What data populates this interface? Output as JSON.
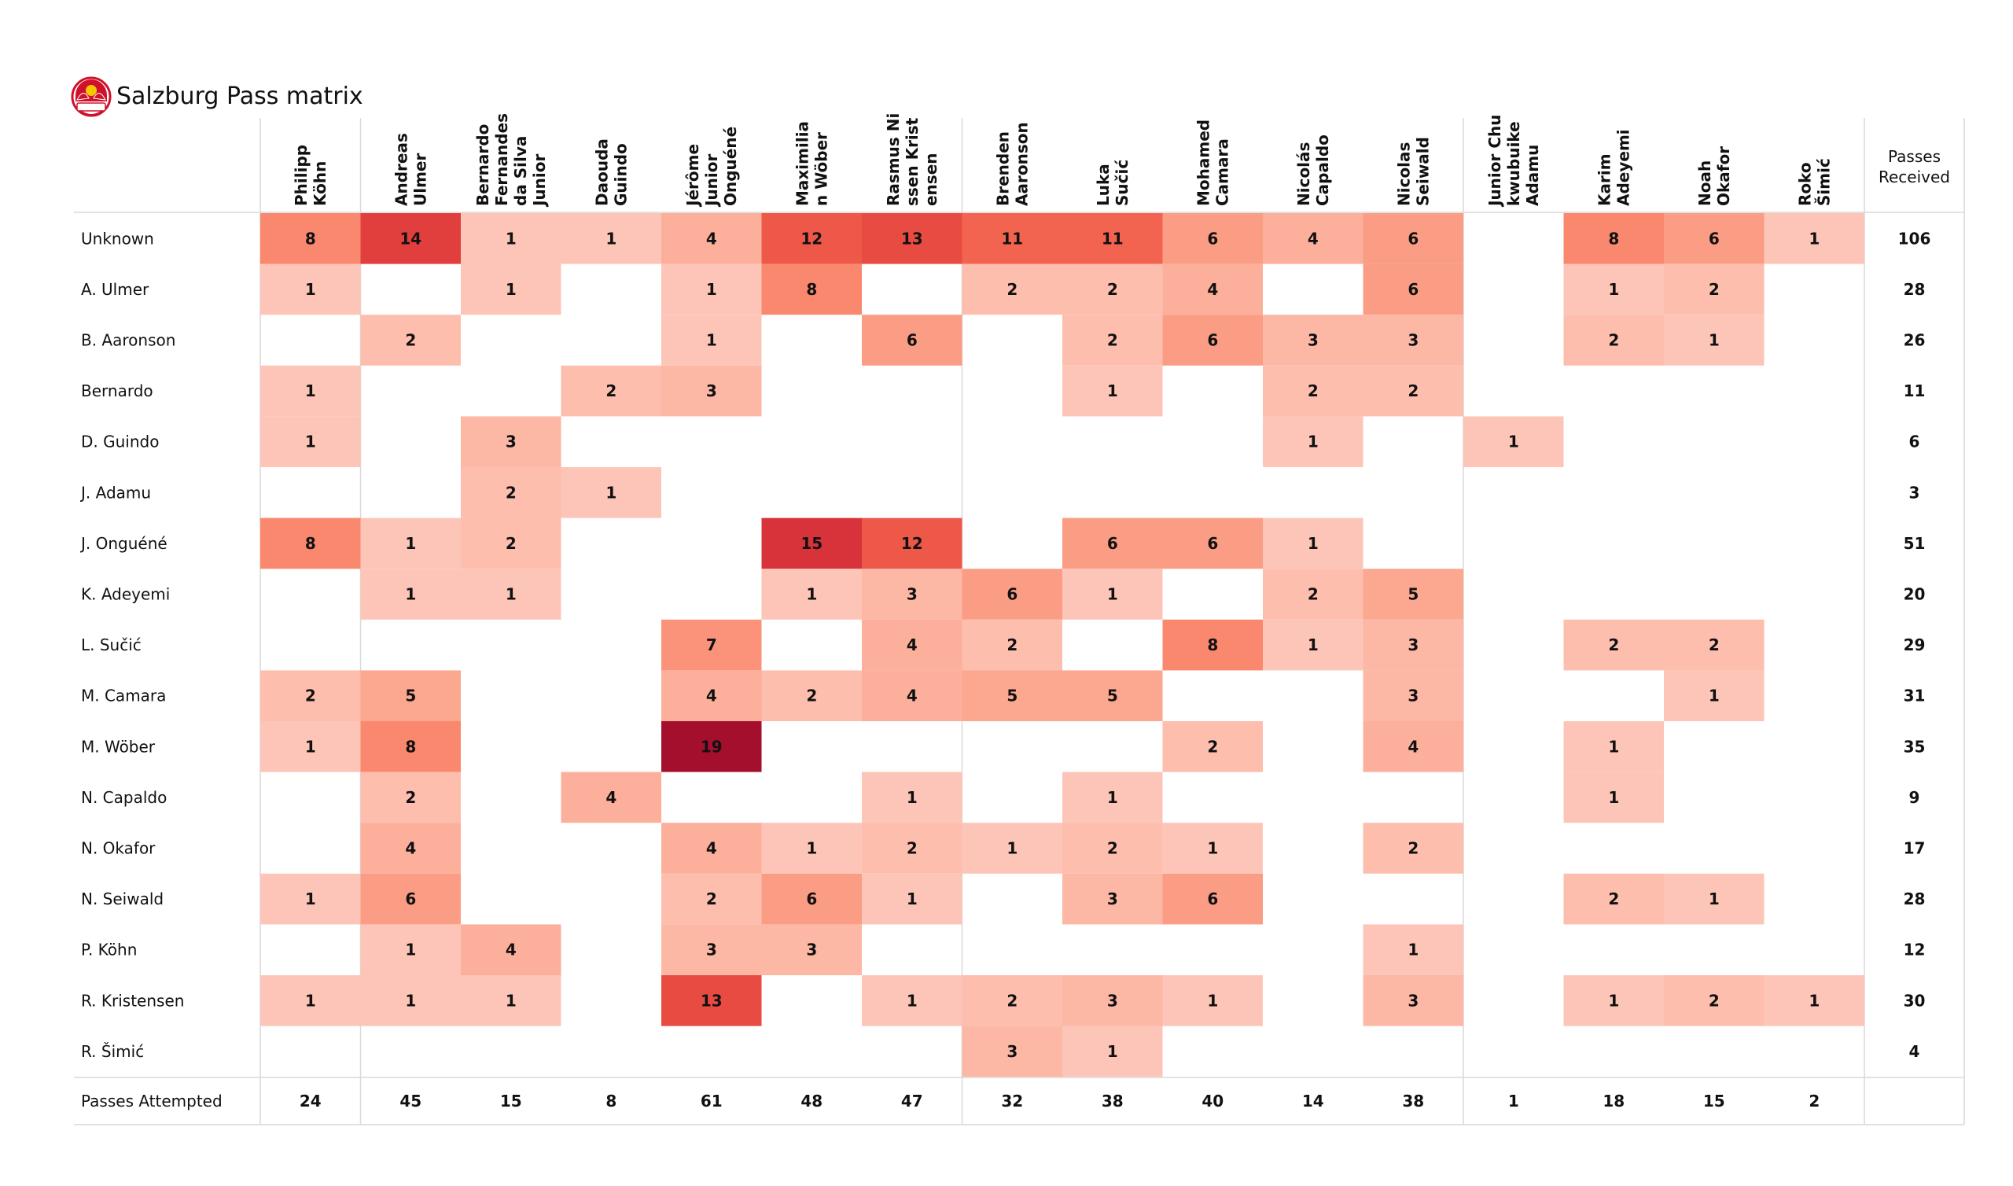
{
  "title": "Salzburg Pass matrix",
  "logo": {
    "name": "red-bull-salzburg-crest",
    "colors": {
      "red": "#d0112b",
      "yellow": "#f7c600",
      "white": "#ffffff",
      "navy": "#1c2a5a"
    }
  },
  "colors": {
    "low": "#fdc0b2",
    "high": "#a50f2e",
    "grid": "#d9d9d9",
    "text": "#111111"
  },
  "chart_data": {
    "type": "heatmap",
    "title": "Salzburg Pass matrix",
    "columns": [
      [
        "Philipp",
        "Köhn"
      ],
      [
        "Andreas",
        "Ulmer"
      ],
      [
        "Bernardo",
        "Fernandes",
        "da Silva",
        "Junior"
      ],
      [
        "Daouda",
        "Guindo"
      ],
      [
        "Jérôme",
        "Junior",
        "Onguéné"
      ],
      [
        "Maximilia",
        "n Wöber"
      ],
      [
        "Rasmus Ni",
        "ssen Krist",
        "ensen"
      ],
      [
        "Brenden",
        "Aaronson"
      ],
      [
        "Luka",
        "Sučić"
      ],
      [
        "Mohamed",
        "Camara"
      ],
      [
        "Nicolás",
        "Capaldo"
      ],
      [
        "Nicolas",
        "Seiwald"
      ],
      [
        "Junior Chu",
        "kwubuike",
        "Adamu"
      ],
      [
        "Karim",
        "Adeyemi"
      ],
      [
        "Noah",
        "Okafor"
      ],
      [
        "Roko",
        "Šimić"
      ]
    ],
    "rows": [
      "Unknown",
      "A. Ulmer",
      "B. Aaronson",
      "Bernardo",
      "D. Guindo",
      "J. Adamu",
      "J. Onguéné",
      "K. Adeyemi",
      "L. Sučić",
      "M. Camara",
      "M. Wöber",
      "N. Capaldo",
      "N. Okafor",
      "N. Seiwald",
      "P. Köhn",
      "R. Kristensen",
      "R. Šimić"
    ],
    "values": [
      [
        8,
        14,
        1,
        1,
        4,
        12,
        13,
        11,
        11,
        6,
        4,
        6,
        null,
        8,
        6,
        1
      ],
      [
        1,
        null,
        1,
        null,
        1,
        8,
        null,
        2,
        2,
        4,
        null,
        6,
        null,
        1,
        2,
        null
      ],
      [
        null,
        2,
        null,
        null,
        1,
        null,
        6,
        null,
        2,
        6,
        3,
        3,
        null,
        2,
        1,
        null
      ],
      [
        1,
        null,
        null,
        2,
        3,
        null,
        null,
        null,
        1,
        null,
        2,
        2,
        null,
        null,
        null,
        null
      ],
      [
        1,
        null,
        3,
        null,
        null,
        null,
        null,
        null,
        null,
        null,
        1,
        null,
        1,
        null,
        null,
        null
      ],
      [
        null,
        null,
        2,
        1,
        null,
        null,
        null,
        null,
        null,
        null,
        null,
        null,
        null,
        null,
        null,
        null
      ],
      [
        8,
        1,
        2,
        null,
        null,
        15,
        12,
        null,
        6,
        6,
        1,
        null,
        null,
        null,
        null,
        null
      ],
      [
        null,
        1,
        1,
        null,
        null,
        1,
        3,
        6,
        1,
        null,
        2,
        5,
        null,
        null,
        null,
        null
      ],
      [
        null,
        null,
        null,
        null,
        7,
        null,
        4,
        2,
        null,
        8,
        1,
        3,
        null,
        2,
        2,
        null
      ],
      [
        2,
        5,
        null,
        null,
        4,
        2,
        4,
        5,
        5,
        null,
        null,
        3,
        null,
        null,
        1,
        null
      ],
      [
        1,
        8,
        null,
        null,
        19,
        null,
        null,
        null,
        null,
        2,
        null,
        4,
        null,
        1,
        null,
        null
      ],
      [
        null,
        2,
        null,
        4,
        null,
        null,
        1,
        null,
        1,
        null,
        null,
        null,
        null,
        1,
        null,
        null
      ],
      [
        null,
        4,
        null,
        null,
        4,
        1,
        2,
        1,
        2,
        1,
        null,
        2,
        null,
        null,
        null,
        null
      ],
      [
        1,
        6,
        null,
        null,
        2,
        6,
        1,
        null,
        3,
        6,
        null,
        null,
        null,
        2,
        1,
        null
      ],
      [
        null,
        1,
        4,
        null,
        3,
        3,
        null,
        null,
        null,
        null,
        null,
        1,
        null,
        null,
        null,
        null
      ],
      [
        1,
        1,
        1,
        null,
        13,
        null,
        1,
        2,
        3,
        1,
        null,
        3,
        null,
        1,
        2,
        1
      ],
      [
        null,
        null,
        null,
        null,
        null,
        null,
        null,
        3,
        1,
        null,
        null,
        null,
        null,
        null,
        null,
        null
      ]
    ],
    "passes_received_label": [
      "Passes",
      "Received"
    ],
    "passes_received": [
      106,
      28,
      26,
      11,
      6,
      3,
      51,
      20,
      29,
      31,
      35,
      9,
      17,
      28,
      12,
      30,
      4
    ],
    "passes_attempted_label": "Passes Attempted",
    "passes_attempted": [
      24,
      45,
      15,
      8,
      61,
      48,
      47,
      32,
      38,
      40,
      14,
      38,
      1,
      18,
      15,
      2
    ],
    "value_range": [
      1,
      19
    ]
  }
}
